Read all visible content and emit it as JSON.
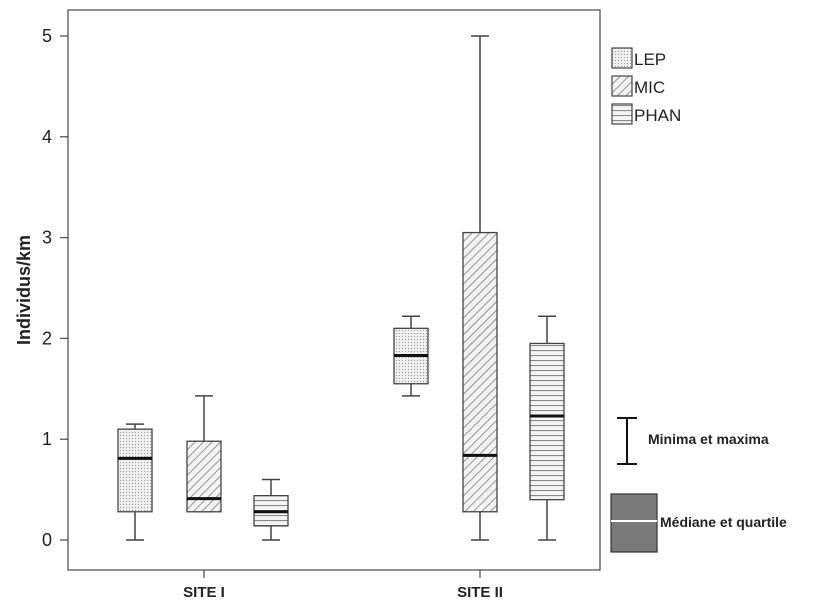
{
  "chart_data": {
    "type": "boxplot",
    "ylabel": "Individus/km",
    "ylim": [
      0,
      5
    ],
    "yticks": [
      "0",
      "1",
      "2",
      "3",
      "4",
      "5"
    ],
    "grid": false,
    "legend_placement": "right",
    "categories": [
      "SITE I",
      "SITE II"
    ],
    "series": [
      {
        "name": "LEP",
        "pattern": "dotted",
        "boxes": [
          {
            "min": 0.0,
            "q1": 0.28,
            "median": 0.81,
            "q3": 1.1,
            "max": 1.15
          },
          {
            "min": 1.43,
            "q1": 1.55,
            "median": 1.83,
            "q3": 2.1,
            "max": 2.22
          }
        ]
      },
      {
        "name": "MIC",
        "pattern": "diagonal",
        "boxes": [
          {
            "min": 0.28,
            "q1": 0.28,
            "median": 0.41,
            "q3": 0.98,
            "max": 1.43
          },
          {
            "min": 0.0,
            "q1": 0.28,
            "median": 0.84,
            "q3": 3.05,
            "max": 5.0
          }
        ]
      },
      {
        "name": "PHAN",
        "pattern": "horizontal",
        "boxes": [
          {
            "min": 0.0,
            "q1": 0.14,
            "median": 0.28,
            "q3": 0.44,
            "max": 0.6
          },
          {
            "min": 0.0,
            "q1": 0.4,
            "median": 1.23,
            "q3": 1.95,
            "max": 2.22
          }
        ]
      }
    ],
    "key": {
      "whisker_label": "Minima et  maxima",
      "box_label": "Médiane et quartile"
    }
  },
  "colors": {
    "box_fill": "#ffffff",
    "pattern_stroke": "#8a8a8a",
    "outline": "#444444",
    "median": "#111111",
    "key_box": "#7a7a7a"
  }
}
